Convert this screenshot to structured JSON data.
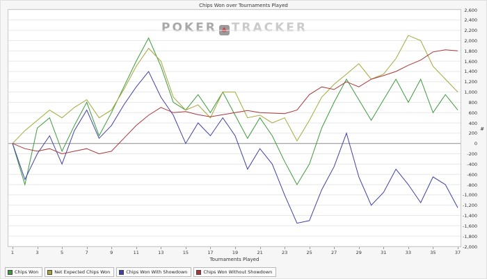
{
  "chart_data": {
    "type": "line",
    "title": "Chips Won over Tournaments Played",
    "xlabel": "Tournaments Played",
    "ylabel": "#",
    "x": [
      1,
      2,
      3,
      4,
      5,
      6,
      7,
      8,
      9,
      10,
      11,
      12,
      13,
      14,
      15,
      16,
      17,
      18,
      19,
      20,
      21,
      22,
      23,
      24,
      25,
      26,
      27,
      28,
      29,
      30,
      31,
      32,
      33,
      34,
      35,
      36,
      37
    ],
    "x_ticks": [
      1,
      3,
      5,
      7,
      9,
      11,
      13,
      15,
      17,
      19,
      21,
      23,
      25,
      27,
      29,
      31,
      33,
      35,
      37
    ],
    "ylim": [
      -2000,
      2600
    ],
    "y_ticks": [
      2600,
      2400,
      2200,
      2000,
      1800,
      1600,
      1400,
      1200,
      1000,
      800,
      600,
      400,
      200,
      0,
      -200,
      -400,
      -600,
      -800,
      -1000,
      -1200,
      -1400,
      -1600,
      -1800,
      -2000
    ],
    "grid": "horizontal",
    "legend_position": "bottom-left",
    "series": [
      {
        "name": "Chips Won",
        "color": "#3c9b3c",
        "values": [
          0,
          -800,
          300,
          500,
          -150,
          350,
          800,
          150,
          600,
          1100,
          1600,
          2050,
          1500,
          800,
          650,
          950,
          600,
          1000,
          550,
          100,
          500,
          150,
          -350,
          -800,
          -400,
          300,
          800,
          1250,
          850,
          450,
          850,
          1250,
          800,
          1250,
          600,
          950,
          650
        ]
      },
      {
        "name": "Net Expected Chips Won",
        "color": "#a3a83a",
        "values": [
          0,
          250,
          450,
          650,
          500,
          700,
          850,
          500,
          650,
          1050,
          1500,
          1850,
          1600,
          900,
          650,
          750,
          500,
          1000,
          1000,
          500,
          550,
          400,
          500,
          50,
          450,
          900,
          1150,
          1350,
          1550,
          1250,
          1350,
          1650,
          2100,
          2000,
          1500,
          1250,
          1000
        ]
      },
      {
        "name": "Chips Won With Showdown",
        "color": "#4040a8",
        "values": [
          0,
          -700,
          -200,
          150,
          -400,
          250,
          650,
          100,
          350,
          750,
          1100,
          1400,
          900,
          550,
          0,
          400,
          150,
          500,
          150,
          -500,
          -100,
          -400,
          -1000,
          -1550,
          -1500,
          -900,
          -450,
          200,
          -650,
          -1200,
          -950,
          -500,
          -800,
          -1150,
          -650,
          -800,
          -1250
        ]
      },
      {
        "name": "Chips Won Without Showdown",
        "color": "#a83838",
        "values": [
          0,
          -100,
          -150,
          -100,
          -200,
          -150,
          -100,
          -200,
          -150,
          100,
          350,
          550,
          700,
          600,
          620,
          560,
          520,
          560,
          600,
          640,
          600,
          590,
          580,
          650,
          950,
          1100,
          1050,
          1200,
          1100,
          1250,
          1320,
          1400,
          1520,
          1620,
          1780,
          1820,
          1800
        ]
      }
    ]
  },
  "watermark": {
    "part1": "POKER",
    "part2": "TRACKER",
    "icon": "spade"
  },
  "colors": {
    "background": "#f6f6f6",
    "plot_border": "#c9c9c9",
    "grid_line": "#e7e7e7",
    "zero_line": "#8c8c8c",
    "tick": "#999999"
  }
}
